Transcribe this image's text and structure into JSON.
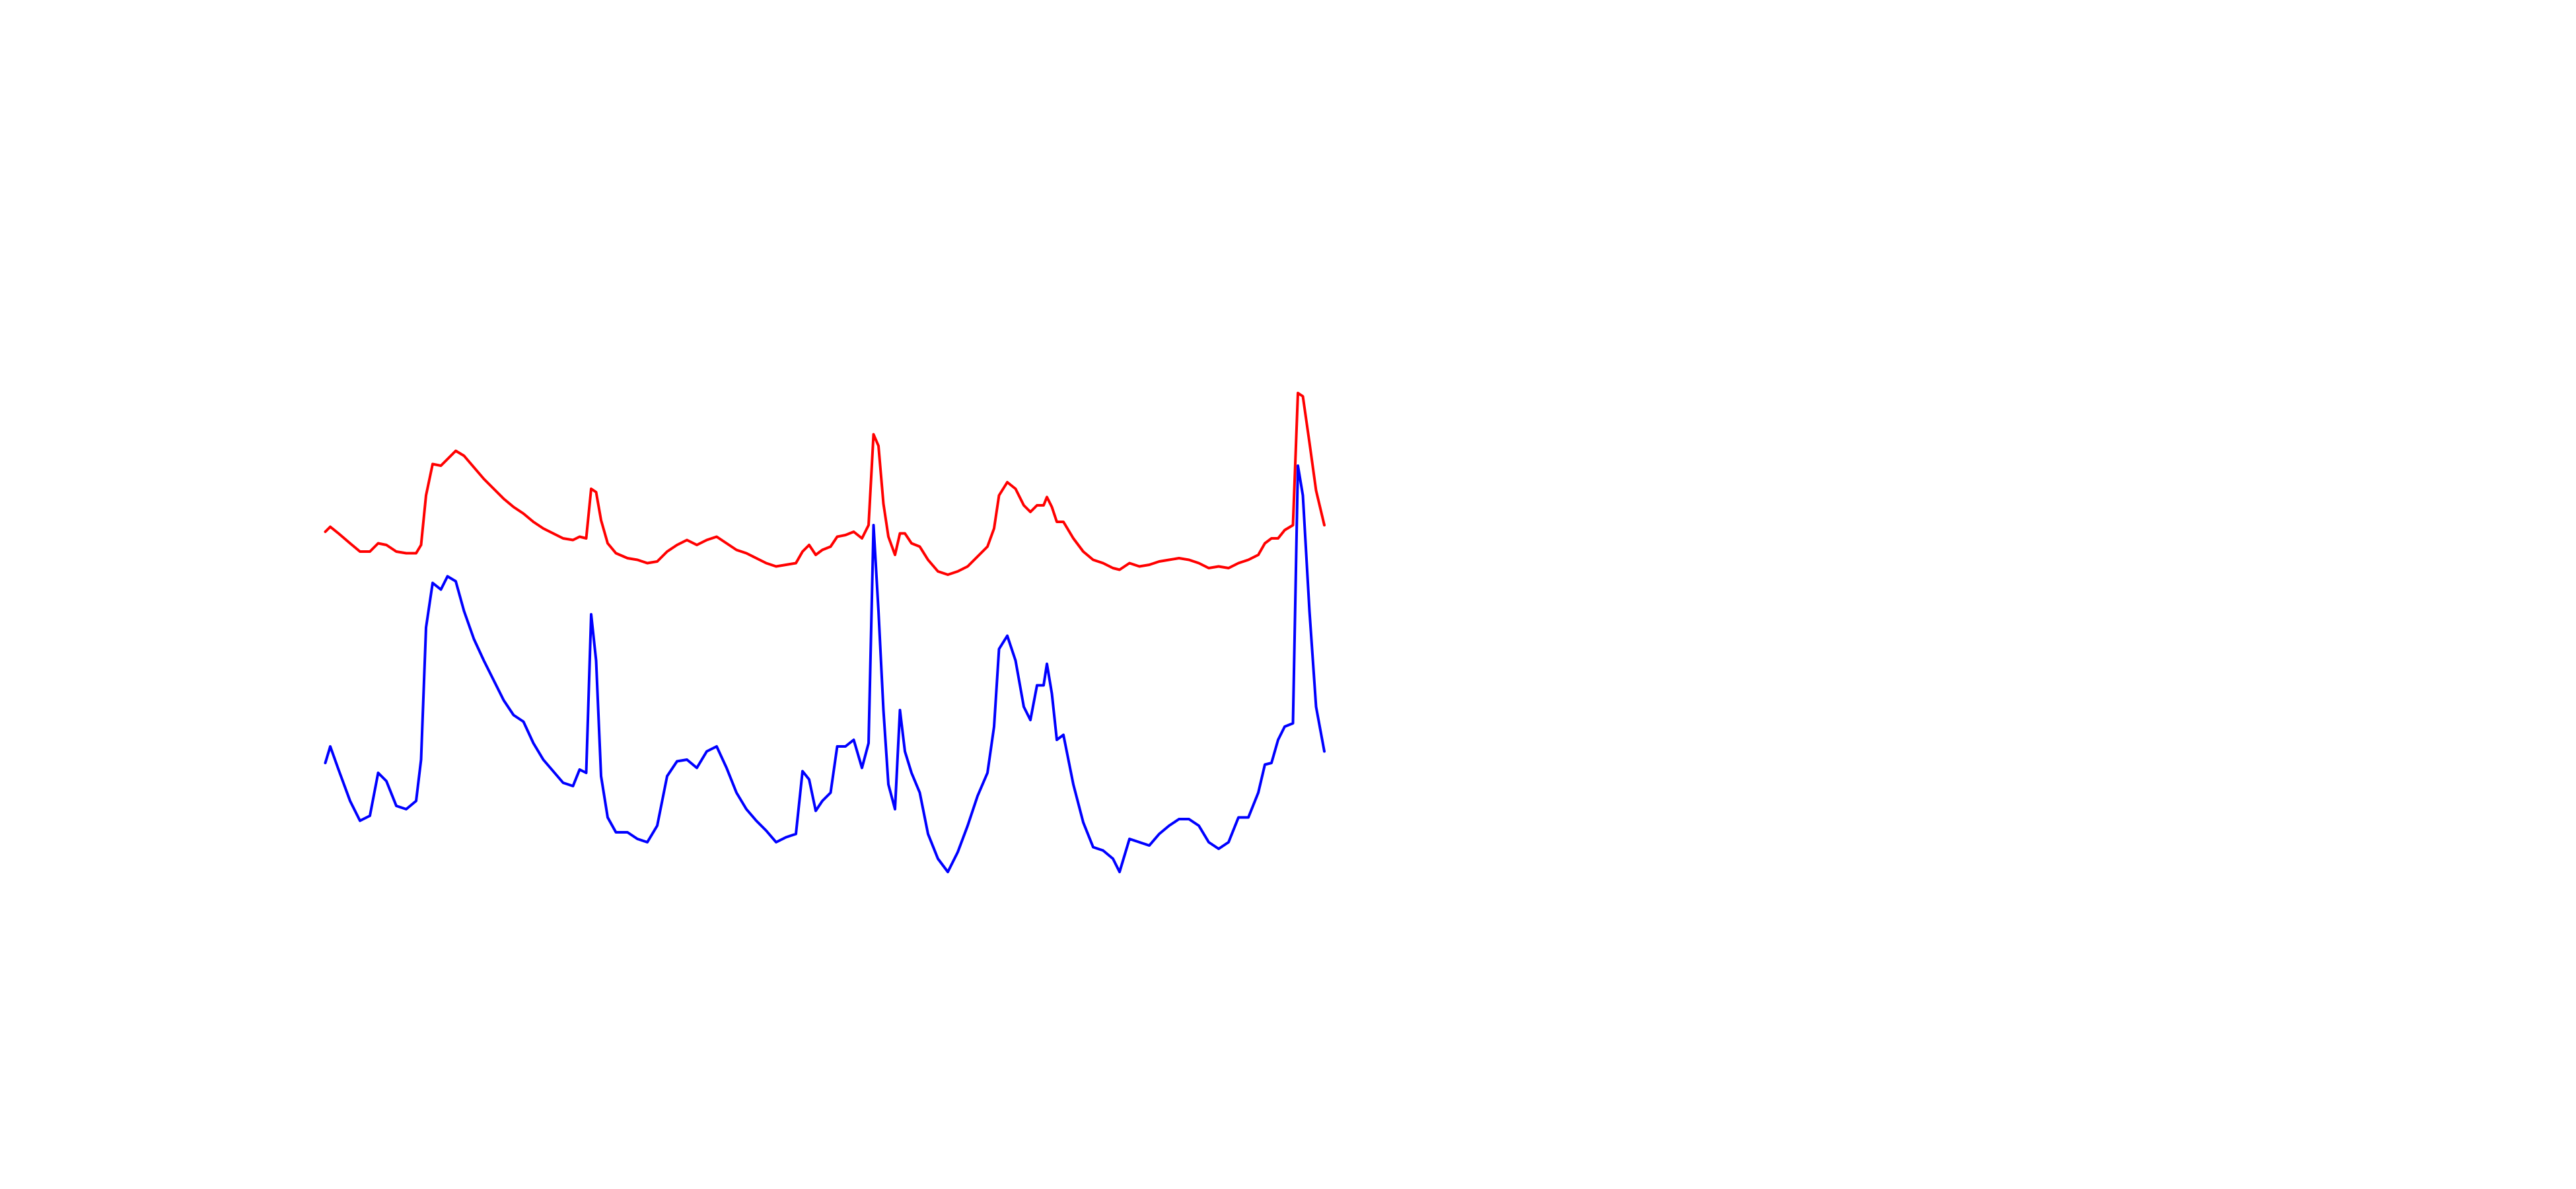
{
  "chart_data": {
    "type": "line",
    "x": [
      197,
      200,
      205,
      212,
      218,
      224,
      229,
      234,
      240,
      246,
      252,
      255,
      258,
      262,
      267,
      271,
      276,
      281,
      287,
      293,
      299,
      305,
      311,
      317,
      323,
      329,
      335,
      341,
      347,
      351,
      355,
      358,
      361,
      364,
      368,
      373,
      380,
      386,
      392,
      398,
      404,
      410,
      416,
      422,
      428,
      434,
      440,
      446,
      452,
      458,
      464,
      470,
      476,
      482,
      486,
      490,
      494,
      498,
      503,
      507,
      512,
      517,
      522,
      526,
      529,
      532,
      535,
      538,
      542,
      545,
      548,
      552,
      557,
      562,
      568,
      574,
      580,
      586,
      592,
      598,
      602,
      605,
      610,
      615,
      620,
      624,
      628,
      632,
      634,
      637,
      640,
      644,
      650,
      656,
      662,
      668,
      674,
      678,
      684,
      690,
      696,
      702,
      708,
      714,
      720,
      726,
      732,
      738,
      744,
      750,
      756,
      762,
      766,
      770,
      774,
      778,
      783,
      786,
      789,
      793,
      797,
      802
    ],
    "xlim": [
      0,
      1560
    ],
    "ylim": [
      0,
      720
    ],
    "series": [
      {
        "color": "#ff0000",
        "values": [
          398,
          401,
          397,
          391,
          386,
          386,
          391,
          390,
          386,
          385,
          385,
          390,
          420,
          439,
          438,
          442,
          447,
          444,
          437,
          430,
          424,
          418,
          413,
          409,
          404,
          400,
          397,
          394,
          393,
          395,
          394,
          424,
          422,
          405,
          391,
          385,
          382,
          381,
          379,
          380,
          386,
          390,
          393,
          390,
          393,
          395,
          391,
          387,
          385,
          382,
          379,
          377,
          378,
          379,
          386,
          390,
          384,
          387,
          389,
          395,
          396,
          398,
          394,
          402,
          457,
          450,
          415,
          395,
          384,
          397,
          397,
          391,
          389,
          381,
          374,
          372,
          374,
          377,
          383,
          389,
          400,
          420,
          428,
          424,
          414,
          410,
          414,
          414,
          419,
          413,
          404,
          404,
          394,
          386,
          381,
          379,
          376,
          375,
          379,
          377,
          378,
          380,
          381,
          382,
          381,
          379,
          376,
          377,
          376,
          379,
          381,
          384,
          391,
          394,
          394,
          399,
          402,
          482,
          480,
          452,
          423,
          402
        ]
      },
      {
        "color": "#0000ff",
        "values": [
          258,
          268,
          254,
          235,
          223,
          226,
          252,
          247,
          232,
          230,
          235,
          260,
          340,
          367,
          363,
          371,
          368,
          350,
          333,
          320,
          308,
          296,
          287,
          283,
          270,
          260,
          253,
          246,
          244,
          254,
          252,
          348,
          320,
          250,
          225,
          216,
          216,
          212,
          210,
          220,
          250,
          259,
          260,
          255,
          265,
          268,
          255,
          240,
          230,
          223,
          217,
          210,
          213,
          215,
          253,
          248,
          229,
          235,
          240,
          268,
          268,
          272,
          255,
          270,
          402,
          350,
          290,
          245,
          230,
          290,
          265,
          252,
          240,
          215,
          200,
          192,
          204,
          220,
          238,
          252,
          280,
          327,
          335,
          320,
          292,
          284,
          305,
          305,
          318,
          300,
          272,
          275,
          245,
          222,
          207,
          205,
          200,
          192,
          212,
          210,
          208,
          215,
          220,
          224,
          224,
          220,
          210,
          206,
          210,
          225,
          225,
          240,
          257,
          258,
          272,
          280,
          282,
          438,
          420,
          350,
          292,
          265
        ]
      }
    ]
  }
}
